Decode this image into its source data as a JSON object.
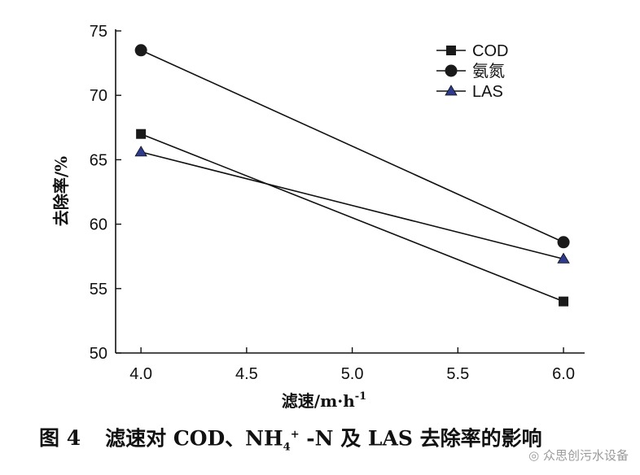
{
  "chart_data": {
    "type": "line",
    "x": [
      4.0,
      6.0
    ],
    "x_tick_labels": [
      "4.0",
      "4.5",
      "5.0",
      "5.5",
      "6.0"
    ],
    "x_ticks": [
      4.0,
      4.5,
      5.0,
      5.5,
      6.0
    ],
    "xlim": [
      3.88,
      6.1
    ],
    "y_tick_labels": [
      "50",
      "55",
      "60",
      "65",
      "70",
      "75"
    ],
    "y_ticks": [
      50,
      55,
      60,
      65,
      70,
      75
    ],
    "ylim": [
      50,
      75
    ],
    "xlabel": "滤速/m·h",
    "xlabel_sup": "-1",
    "ylabel": "去除率/%",
    "grid": false,
    "legend_position": "top-right",
    "series": [
      {
        "name": "COD",
        "marker": "square",
        "color": "#1a1a1a",
        "values": [
          67.0,
          54.0
        ]
      },
      {
        "name": "氨氮",
        "marker": "circle",
        "color": "#1a1a1a",
        "values": [
          73.5,
          58.6
        ]
      },
      {
        "name": "LAS",
        "marker": "triangle",
        "color": "#2e3a8c",
        "values": [
          65.6,
          57.3
        ]
      }
    ]
  },
  "caption": {
    "figure_number": "图 4",
    "text_before": "滤速对 COD、NH",
    "sub": "4",
    "sup": "+",
    "text_after": " -N 及 LAS 去除率的影响"
  },
  "watermark": "众思创污水设备"
}
